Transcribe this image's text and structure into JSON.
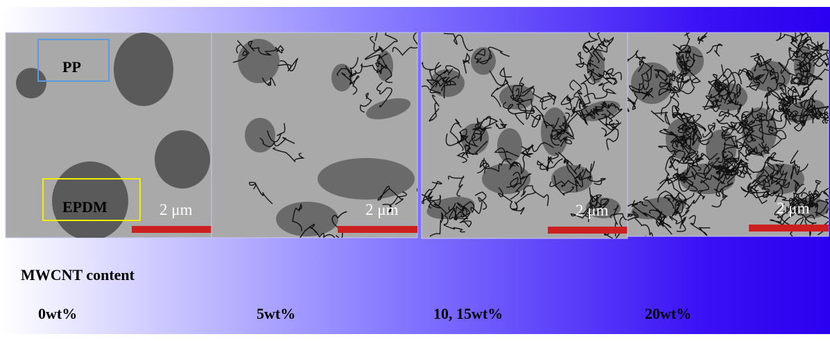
{
  "panels": [
    {
      "annotations": [
        "PP",
        "EPDM"
      ],
      "scale_label": "2 μm"
    },
    {
      "scale_label": "2 μm"
    },
    {
      "scale_label": "2 μm"
    },
    {
      "scale_label": "2 μm"
    }
  ],
  "content_heading": "MWCNT content",
  "contents": [
    "0wt%",
    "5wt%",
    "10, 15wt%",
    "20wt%"
  ]
}
